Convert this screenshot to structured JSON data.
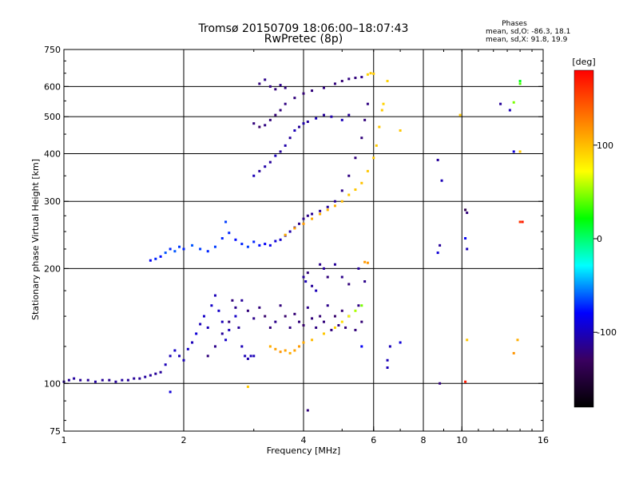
{
  "chart_data": {
    "type": "scatter",
    "title": "Tromsø 20150709 18:06:00–18:07:43",
    "subtitle": "RwPretec (8p)",
    "phase_stats": {
      "heading": "Phases",
      "line_o": "mean, sd,O: -86.3, 18.1",
      "line_x": "mean, sd,X:  91.8, 19.9"
    },
    "xlabel": "Frequency [MHz]",
    "ylabel": "Stationary phase Virtual Height [km]",
    "x_scale": "log",
    "y_scale": "log",
    "xlim": [
      1,
      16
    ],
    "ylim": [
      75,
      750
    ],
    "x_ticks": [
      1,
      2,
      4,
      6,
      8,
      10,
      16
    ],
    "x_tick_labels": [
      "1",
      "2",
      "4",
      "6",
      "8",
      "10",
      "16"
    ],
    "x_grid": [
      2,
      4,
      6,
      8,
      10
    ],
    "y_ticks": [
      75,
      100,
      200,
      300,
      400,
      500,
      600,
      750
    ],
    "y_tick_labels": [
      "75",
      "100",
      "200",
      "300",
      "400",
      "500",
      "600",
      "750"
    ],
    "y_grid": [
      100,
      200,
      300,
      400,
      500,
      600
    ],
    "grid": true,
    "colorbar": {
      "label": "[deg]",
      "range": [
        -180,
        180
      ],
      "ticks": [
        100,
        0,
        -100
      ],
      "tick_labels": [
        "100",
        "0",
        "-100"
      ],
      "colors": [
        "#000000",
        "#3a0060",
        "#0000ff",
        "#00ffff",
        "#00ff00",
        "#ffff00",
        "#ff8000",
        "#ff0000"
      ]
    },
    "series": [
      {
        "values": [
          [
            1.0,
            101,
            -110
          ],
          [
            1.03,
            102,
            -110
          ],
          [
            1.06,
            103,
            -108
          ],
          [
            1.1,
            102,
            -112
          ],
          [
            1.15,
            102,
            -110
          ],
          [
            1.2,
            101,
            -108
          ],
          [
            1.25,
            102,
            -110
          ],
          [
            1.3,
            102,
            -112
          ],
          [
            1.35,
            101,
            -110
          ],
          [
            1.4,
            102,
            -108
          ],
          [
            1.45,
            102,
            -110
          ],
          [
            1.5,
            103,
            -110
          ],
          [
            1.55,
            103,
            -112
          ],
          [
            1.6,
            104,
            -108
          ],
          [
            1.65,
            105,
            -110
          ],
          [
            1.7,
            106,
            -110
          ],
          [
            1.75,
            107,
            -110
          ],
          [
            1.8,
            112,
            -100
          ],
          [
            1.85,
            118,
            -100
          ],
          [
            1.9,
            122,
            -95
          ],
          [
            1.95,
            118,
            -100
          ],
          [
            2.0,
            115,
            -100
          ],
          [
            2.05,
            123,
            -95
          ],
          [
            2.1,
            128,
            -100
          ],
          [
            2.15,
            135,
            -90
          ],
          [
            2.2,
            143,
            -100
          ],
          [
            2.25,
            150,
            -95
          ],
          [
            2.3,
            140,
            -100
          ],
          [
            2.35,
            160,
            -95
          ],
          [
            2.4,
            170,
            -100
          ],
          [
            2.45,
            155,
            -95
          ],
          [
            2.5,
            145,
            -100
          ],
          [
            2.55,
            130,
            -95
          ],
          [
            2.6,
            138,
            -100
          ],
          [
            2.65,
            165,
            -120
          ],
          [
            2.7,
            150,
            -95
          ],
          [
            2.75,
            140,
            -110
          ],
          [
            2.8,
            125,
            -100
          ],
          [
            2.85,
            118,
            -100
          ],
          [
            2.9,
            116,
            -105
          ],
          [
            2.95,
            118,
            -100
          ],
          [
            3.0,
            118,
            -100
          ]
        ]
      },
      {
        "values": [
          [
            2.3,
            118,
            -120
          ],
          [
            2.4,
            125,
            -115
          ],
          [
            2.5,
            135,
            -110
          ],
          [
            2.6,
            145,
            -120
          ],
          [
            2.7,
            158,
            -115
          ],
          [
            2.8,
            165,
            -110
          ],
          [
            2.9,
            155,
            -120
          ],
          [
            3.0,
            148,
            -115
          ],
          [
            3.1,
            158,
            -120
          ],
          [
            3.2,
            150,
            -125
          ],
          [
            3.3,
            140,
            -120
          ],
          [
            3.4,
            145,
            -115
          ],
          [
            3.5,
            160,
            -120
          ],
          [
            3.6,
            150,
            -125
          ],
          [
            3.7,
            140,
            -118
          ],
          [
            3.8,
            152,
            -122
          ],
          [
            3.9,
            145,
            -120
          ],
          [
            4.0,
            142,
            -125
          ],
          [
            4.1,
            158,
            -115
          ],
          [
            4.2,
            148,
            -120
          ],
          [
            4.3,
            140,
            -118
          ],
          [
            4.4,
            150,
            -122
          ],
          [
            4.5,
            145,
            -120
          ],
          [
            4.6,
            160,
            -115
          ],
          [
            4.7,
            138,
            -120
          ],
          [
            4.8,
            150,
            -125
          ],
          [
            4.9,
            142,
            -118
          ],
          [
            5.0,
            155,
            -122
          ],
          [
            5.1,
            140,
            -120
          ],
          [
            5.2,
            150,
            -115
          ],
          [
            5.4,
            138,
            -120
          ],
          [
            5.5,
            160,
            -118
          ],
          [
            5.6,
            145,
            -122
          ]
        ]
      },
      {
        "values": [
          [
            3.3,
            125,
            110
          ],
          [
            3.4,
            123,
            115
          ],
          [
            3.5,
            121,
            120
          ],
          [
            3.6,
            122,
            115
          ],
          [
            3.7,
            120,
            110
          ],
          [
            3.8,
            122,
            115
          ],
          [
            3.9,
            125,
            118
          ],
          [
            4.0,
            128,
            112
          ],
          [
            4.2,
            130,
            105
          ],
          [
            4.5,
            135,
            100
          ],
          [
            4.8,
            140,
            95
          ],
          [
            5.0,
            145,
            90
          ],
          [
            5.2,
            150,
            80
          ],
          [
            5.4,
            155,
            60
          ],
          [
            5.6,
            160,
            50
          ],
          [
            5.8,
            207,
            120
          ],
          [
            5.7,
            208,
            118
          ]
        ]
      },
      {
        "values": [
          [
            4.0,
            190,
            -110
          ],
          [
            4.05,
            185,
            -100
          ],
          [
            4.1,
            195,
            -120
          ],
          [
            4.2,
            180,
            -110
          ],
          [
            4.3,
            175,
            -100
          ],
          [
            4.4,
            205,
            -115
          ],
          [
            4.5,
            200,
            -110
          ],
          [
            4.6,
            190,
            -120
          ],
          [
            4.8,
            205,
            -110
          ],
          [
            5.0,
            190,
            -115
          ],
          [
            5.2,
            182,
            -120
          ],
          [
            5.5,
            200,
            -110
          ],
          [
            5.7,
            185,
            -115
          ]
        ]
      },
      {
        "values": [
          [
            1.65,
            210,
            -80
          ],
          [
            1.7,
            212,
            -70
          ],
          [
            1.75,
            215,
            -75
          ],
          [
            1.8,
            220,
            -60
          ],
          [
            1.85,
            225,
            -70
          ],
          [
            1.9,
            222,
            -60
          ],
          [
            1.95,
            228,
            -65
          ],
          [
            2.0,
            225,
            -70
          ],
          [
            2.1,
            230,
            -60
          ],
          [
            2.2,
            225,
            -65
          ],
          [
            2.3,
            222,
            -70
          ],
          [
            2.4,
            228,
            -65
          ],
          [
            2.5,
            240,
            -70
          ],
          [
            2.55,
            265,
            -65
          ],
          [
            2.6,
            248,
            -70
          ],
          [
            2.7,
            238,
            -75
          ],
          [
            2.8,
            232,
            -70
          ],
          [
            2.9,
            228,
            -65
          ],
          [
            3.0,
            235,
            -70
          ],
          [
            3.1,
            230,
            -75
          ],
          [
            3.2,
            232,
            -80
          ],
          [
            3.3,
            230,
            -85
          ],
          [
            3.4,
            236,
            -90
          ],
          [
            3.5,
            238,
            -95
          ],
          [
            3.6,
            244,
            -100
          ],
          [
            3.7,
            250,
            -105
          ],
          [
            3.8,
            256,
            -110
          ],
          [
            3.9,
            262,
            -115
          ],
          [
            4.0,
            270,
            -115
          ],
          [
            4.1,
            275,
            -115
          ],
          [
            4.2,
            278,
            -112
          ],
          [
            4.4,
            283,
            -110
          ],
          [
            4.6,
            290,
            -110
          ],
          [
            4.8,
            300,
            -112
          ],
          [
            5.0,
            320,
            -115
          ],
          [
            5.2,
            350,
            -118
          ],
          [
            5.4,
            390,
            -120
          ],
          [
            5.6,
            440,
            -120
          ],
          [
            5.7,
            490,
            -120
          ],
          [
            5.8,
            540,
            -118
          ]
        ]
      },
      {
        "values": [
          [
            3.6,
            245,
            110
          ],
          [
            3.8,
            255,
            115
          ],
          [
            4.0,
            262,
            118
          ],
          [
            4.2,
            270,
            112
          ],
          [
            4.4,
            278,
            110
          ],
          [
            4.6,
            285,
            108
          ],
          [
            4.8,
            292,
            110
          ],
          [
            5.0,
            300,
            105
          ],
          [
            5.2,
            312,
            100
          ],
          [
            5.4,
            322,
            100
          ],
          [
            5.6,
            335,
            102
          ],
          [
            5.8,
            360,
            100
          ],
          [
            6.0,
            390,
            100
          ],
          [
            6.1,
            420,
            98
          ],
          [
            6.2,
            470,
            100
          ],
          [
            6.3,
            520,
            98
          ],
          [
            6.35,
            540,
            95
          ]
        ]
      },
      {
        "values": [
          [
            3.0,
            350,
            -100
          ],
          [
            3.1,
            360,
            -110
          ],
          [
            3.2,
            370,
            -105
          ],
          [
            3.3,
            380,
            -110
          ],
          [
            3.4,
            395,
            -100
          ],
          [
            3.5,
            405,
            -110
          ],
          [
            3.6,
            420,
            -105
          ],
          [
            3.7,
            440,
            -110
          ],
          [
            3.8,
            460,
            -100
          ],
          [
            3.9,
            470,
            -110
          ],
          [
            4.0,
            480,
            -105
          ],
          [
            4.1,
            485,
            -110
          ],
          [
            4.3,
            495,
            -100
          ],
          [
            4.5,
            505,
            -110
          ],
          [
            4.7,
            500,
            -105
          ],
          [
            5.0,
            490,
            -100
          ],
          [
            5.2,
            505,
            -110
          ]
        ]
      },
      {
        "values": [
          [
            3.0,
            480,
            -120
          ],
          [
            3.1,
            470,
            -125
          ],
          [
            3.2,
            475,
            -118
          ],
          [
            3.3,
            490,
            -120
          ],
          [
            3.4,
            505,
            -122
          ],
          [
            3.5,
            520,
            -120
          ],
          [
            3.6,
            540,
            -118
          ],
          [
            3.8,
            560,
            -120
          ],
          [
            4.0,
            575,
            -122
          ],
          [
            4.2,
            585,
            -120
          ],
          [
            4.5,
            595,
            -118
          ],
          [
            4.8,
            610,
            -120
          ],
          [
            5.0,
            620,
            -122
          ],
          [
            5.2,
            628,
            -118
          ],
          [
            5.4,
            632,
            -120
          ],
          [
            5.6,
            635,
            -115
          ],
          [
            5.8,
            645,
            95
          ],
          [
            5.9,
            650,
            100
          ],
          [
            6.0,
            648,
            98
          ]
        ]
      },
      {
        "values": [
          [
            3.1,
            610,
            -120
          ],
          [
            3.2,
            625,
            -115
          ],
          [
            3.3,
            600,
            -118
          ],
          [
            3.4,
            590,
            -120
          ],
          [
            3.5,
            605,
            -115
          ],
          [
            3.6,
            595,
            -118
          ]
        ]
      },
      {
        "values": [
          [
            1.85,
            95,
            -90
          ],
          [
            2.9,
            98,
            100
          ],
          [
            5.6,
            125,
            -80
          ],
          [
            6.6,
            125,
            -100
          ],
          [
            7.0,
            128,
            -90
          ],
          [
            6.5,
            115,
            -100
          ],
          [
            6.5,
            110,
            -100
          ],
          [
            8.8,
            100,
            -120
          ],
          [
            8.7,
            385,
            -110
          ],
          [
            8.9,
            340,
            -100
          ],
          [
            8.8,
            230,
            -110
          ],
          [
            8.7,
            220,
            -90
          ],
          [
            10.2,
            240,
            -80
          ],
          [
            10.3,
            225,
            -100
          ],
          [
            10.2,
            285,
            -140
          ],
          [
            10.3,
            280,
            -120
          ],
          [
            9.9,
            505,
            100
          ],
          [
            12.5,
            540,
            -110
          ],
          [
            13.2,
            520,
            -100
          ],
          [
            14.0,
            405,
            100
          ],
          [
            13.5,
            405,
            -90
          ],
          [
            14.0,
            265,
            160
          ],
          [
            14.2,
            265,
            170
          ],
          [
            14.0,
            610,
            40
          ],
          [
            13.5,
            545,
            50
          ],
          [
            14.0,
            620,
            20
          ],
          [
            13.8,
            130,
            110
          ],
          [
            13.5,
            120,
            120
          ],
          [
            10.3,
            130,
            100
          ],
          [
            10.2,
            101,
            170
          ],
          [
            4.1,
            85,
            -120
          ],
          [
            7.0,
            460,
            100
          ],
          [
            6.5,
            620,
            95
          ]
        ]
      }
    ]
  }
}
